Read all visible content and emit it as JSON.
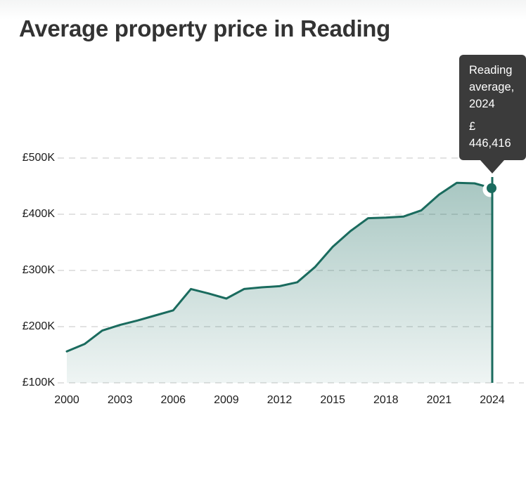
{
  "page": {
    "title": "Average property price in Reading"
  },
  "tooltip": {
    "label": "Reading average, 2024",
    "value": "£ 446,416"
  },
  "chart_data": {
    "type": "area",
    "title": "Average property price in Reading",
    "series": [
      {
        "name": "Reading average",
        "x": [
          2000,
          2001,
          2002,
          2003,
          2004,
          2005,
          2006,
          2007,
          2008,
          2009,
          2010,
          2011,
          2012,
          2013,
          2014,
          2015,
          2016,
          2017,
          2018,
          2019,
          2020,
          2021,
          2022,
          2023,
          2024
        ],
        "values": [
          156000,
          169000,
          193000,
          203000,
          211000,
          220000,
          229000,
          267000,
          259000,
          250000,
          267000,
          270000,
          272000,
          279000,
          306000,
          342000,
          370000,
          393000,
          394000,
          396000,
          407000,
          435000,
          456000,
          455000,
          446416
        ]
      }
    ],
    "x_ticks": [
      "2000",
      "2003",
      "2006",
      "2009",
      "2012",
      "2015",
      "2018",
      "2021",
      "2024"
    ],
    "y_ticks": [
      {
        "label": "£500K",
        "value": 500000
      },
      {
        "label": "£400K",
        "value": 400000
      },
      {
        "label": "£300K",
        "value": 300000
      },
      {
        "label": "£200K",
        "value": 200000
      },
      {
        "label": "£100K",
        "value": 100000
      }
    ],
    "xlim": [
      2000,
      2024
    ],
    "ylim": [
      100000,
      500000
    ],
    "grid": "horizontal-dashed",
    "legend": "none",
    "highlight_point": {
      "x": 2024,
      "value": 446416,
      "tooltip": "Reading average, 2024 £ 446,416"
    },
    "colors": {
      "line": "#1a6b5e",
      "fill_top": "rgba(26,107,94,0.38)",
      "fill_bottom": "rgba(26,107,94,0.07)",
      "gridline": "#e2e2e2",
      "tooltip_bg": "#3b3b3b",
      "tooltip_text": "#ffffff",
      "title_text": "#333333",
      "axis_text": "#1c1c1c"
    }
  }
}
